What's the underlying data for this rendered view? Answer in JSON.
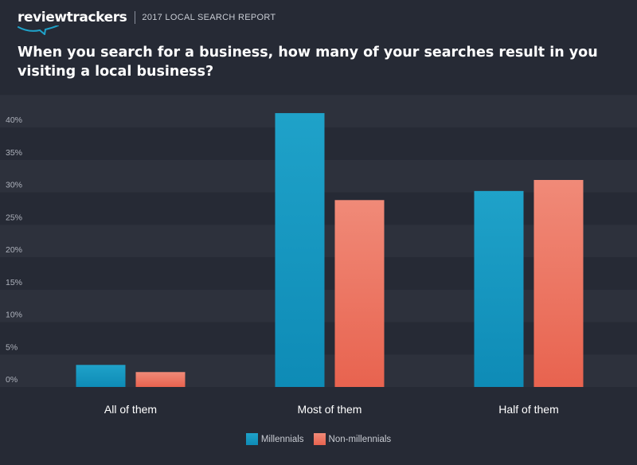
{
  "header": {
    "logo": "reviewtrackers",
    "report": "2017 LOCAL SEARCH REPORT"
  },
  "colors": {
    "background": "#262a35",
    "band_dark": "#262a35",
    "band_light": "#2d313c",
    "millennials_top": "#1fa2c9",
    "millennials_bottom": "#0e8bb6",
    "nonmillennials_top": "#f08a78",
    "nonmillennials_bottom": "#e8634f"
  },
  "chart_data": {
    "type": "bar",
    "title": "When you search for a business, how many of your searches result in you visiting a local business?",
    "categories": [
      "All of them",
      "Most of them",
      "Half of them"
    ],
    "series": [
      {
        "name": "Millennials",
        "values": [
          3.4,
          42.2,
          30.2
        ]
      },
      {
        "name": "Non-millennials",
        "values": [
          2.3,
          28.8,
          31.9
        ]
      }
    ],
    "yticks": [
      "0%",
      "5%",
      "10%",
      "15%",
      "20%",
      "25%",
      "30%",
      "35%",
      "40%"
    ],
    "ylim": [
      0,
      45
    ],
    "grid": true,
    "legend": "bottom-center"
  }
}
